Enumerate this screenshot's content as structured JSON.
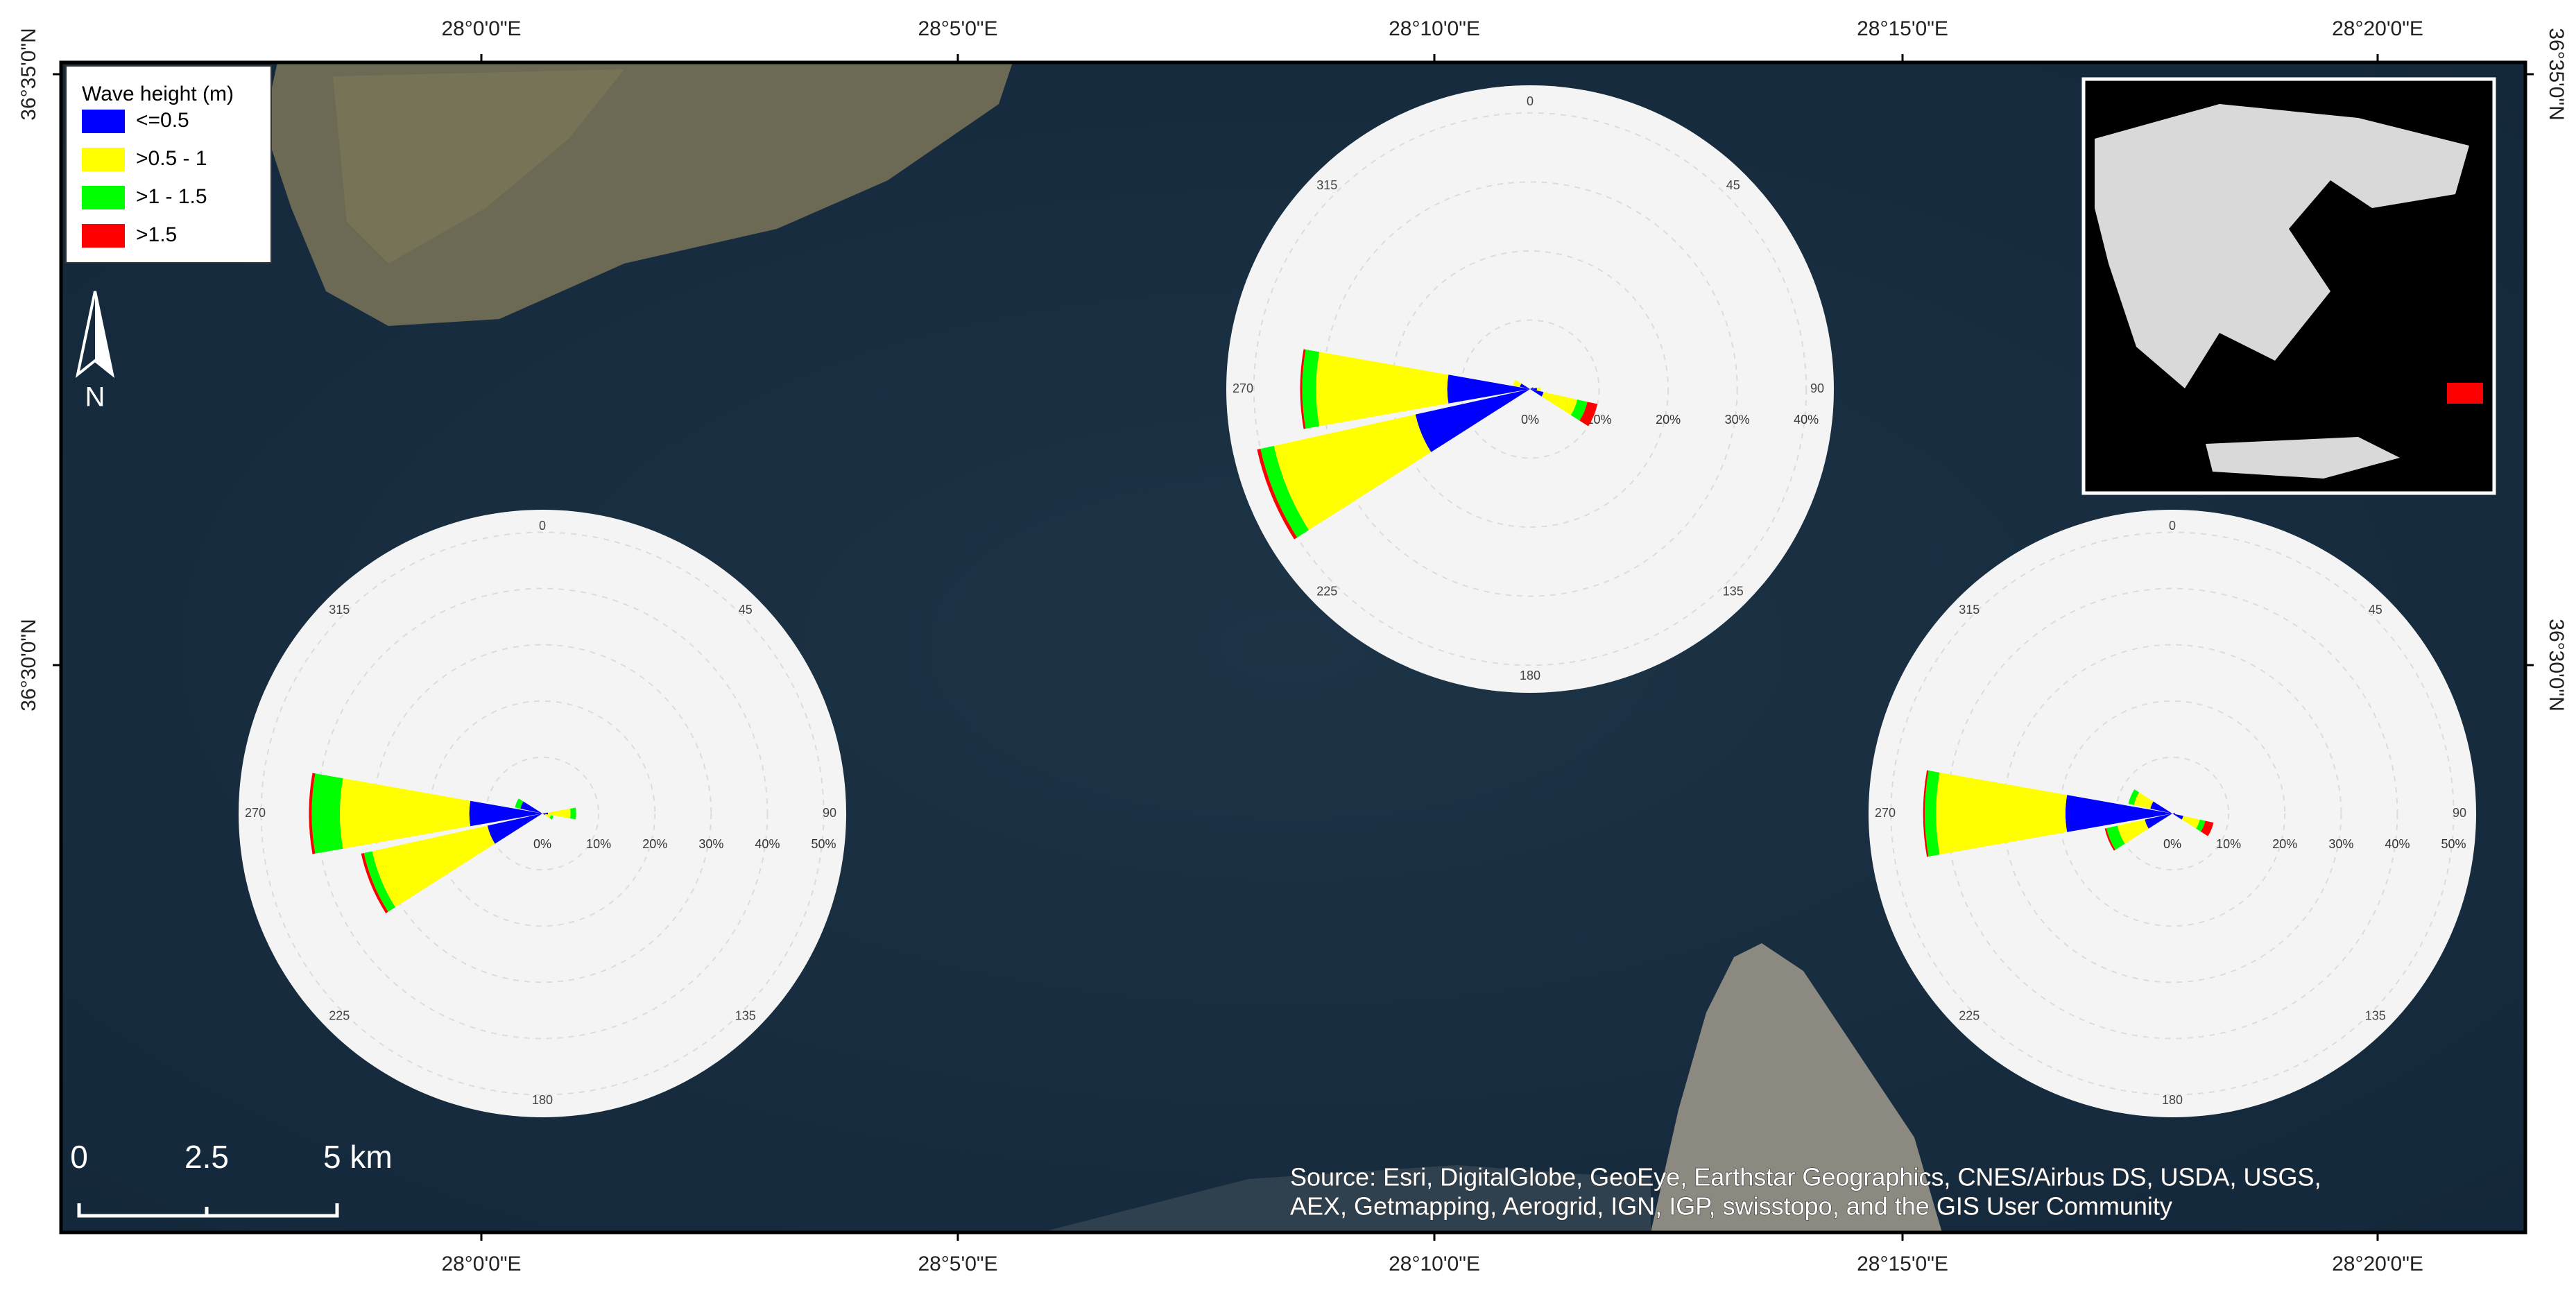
{
  "lon_labels": [
    "28°0'0\"E",
    "28°5'0\"E",
    "28°10'0\"E",
    "28°15'0\"E",
    "28°20'0\"E"
  ],
  "lat_labels": [
    "36°35'0\"N",
    "36°30'0\"N"
  ],
  "legend": {
    "title": "Wave height (m)",
    "items": [
      {
        "name": "<=0.5",
        "color": "#0000ff"
      },
      {
        "name": ">0.5 - 1",
        "color": "#ffff00"
      },
      {
        "name": ">1 - 1.5",
        "color": "#00ff00"
      },
      {
        "name": ">1.5",
        "color": "#ff0000"
      }
    ]
  },
  "north": "N",
  "scale_bar": [
    "0",
    "2.5",
    "5 km"
  ],
  "source": [
    "Source: Esri, DigitalGlobe, GeoEye, Earthstar Geographics, CNES/Airbus DS, USDA, USGS,",
    "AEX, Getmapping, Aerogrid, IGN, IGP, swisstopo, and the GIS User Community"
  ],
  "chart_data": [
    {
      "type": "rose",
      "x": [
        0,
        22.5,
        45,
        67.5,
        90,
        112.5,
        135,
        157.5,
        180,
        202.5,
        225,
        247.5,
        270,
        292.5,
        315,
        337.5
      ],
      "xticks": [
        0,
        45,
        90,
        135,
        180,
        225,
        270,
        315
      ],
      "ylim": [
        0,
        44
      ],
      "yticks": [
        {
          "value": 0,
          "label": "0%"
        },
        {
          "value": 10,
          "label": "10%"
        },
        {
          "value": 20,
          "label": "20%"
        },
        {
          "value": 30,
          "label": "30%"
        },
        {
          "value": 40,
          "label": "40%"
        }
      ],
      "series": [
        {
          "values": [
            0,
            0,
            0,
            0.5,
            1,
            2,
            0,
            0,
            0,
            0,
            0,
            17,
            12,
            1.5,
            0,
            0
          ]
        },
        {
          "values": [
            0,
            0,
            0,
            0,
            0.5,
            5,
            0,
            0,
            0,
            0,
            0,
            21,
            19,
            1,
            0,
            0
          ]
        },
        {
          "values": [
            0,
            0,
            0,
            0,
            0,
            1.5,
            0,
            0,
            0,
            0,
            0,
            2,
            2,
            0,
            0,
            0
          ]
        },
        {
          "values": [
            0,
            0,
            0,
            0,
            0,
            1.5,
            0,
            0,
            0,
            0,
            0,
            0.5,
            0.3,
            0,
            0,
            0
          ]
        }
      ]
    },
    {
      "type": "rose",
      "x": [
        0,
        22.5,
        45,
        67.5,
        90,
        112.5,
        135,
        157.5,
        180,
        202.5,
        225,
        247.5,
        270,
        292.5,
        315,
        337.5
      ],
      "xticks": [
        0,
        45,
        90,
        135,
        180,
        225,
        270,
        315
      ],
      "ylim": [
        0,
        54
      ],
      "yticks": [
        {
          "value": 0,
          "label": "0%"
        },
        {
          "value": 10,
          "label": "10%"
        },
        {
          "value": 20,
          "label": "20%"
        },
        {
          "value": 30,
          "label": "30%"
        },
        {
          "value": 40,
          "label": "40%"
        },
        {
          "value": 50,
          "label": "50%"
        }
      ],
      "series": [
        {
          "values": [
            0,
            0,
            0,
            0,
            1,
            0.5,
            0,
            0,
            0,
            0,
            0,
            10,
            13,
            4,
            0,
            0
          ]
        },
        {
          "values": [
            0,
            0,
            0,
            0.5,
            4,
            1,
            0,
            0,
            0,
            0,
            0,
            21,
            23,
            0,
            0,
            0
          ]
        },
        {
          "values": [
            0,
            0,
            0,
            0,
            1,
            0.5,
            0,
            0,
            0,
            0,
            0,
            1.5,
            5,
            1,
            0,
            0
          ]
        },
        {
          "values": [
            0,
            0,
            0,
            0,
            0,
            0,
            0,
            0,
            0,
            0,
            0,
            0.5,
            0.5,
            0,
            0,
            0
          ]
        }
      ]
    },
    {
      "type": "rose",
      "x": [
        0,
        22.5,
        45,
        67.5,
        90,
        112.5,
        135,
        157.5,
        180,
        202.5,
        225,
        247.5,
        270,
        292.5,
        315,
        337.5
      ],
      "xticks": [
        0,
        45,
        90,
        135,
        180,
        225,
        270,
        315
      ],
      "ylim": [
        0,
        54
      ],
      "yticks": [
        {
          "value": 0,
          "label": "0%"
        },
        {
          "value": 10,
          "label": "10%"
        },
        {
          "value": 20,
          "label": "20%"
        },
        {
          "value": 30,
          "label": "30%"
        },
        {
          "value": 40,
          "label": "40%"
        },
        {
          "value": 50,
          "label": "50%"
        }
      ],
      "series": [
        {
          "values": [
            0,
            0,
            0,
            0,
            0.5,
            2,
            0,
            0,
            0,
            0,
            0,
            5,
            19,
            4,
            0,
            0
          ]
        },
        {
          "values": [
            0,
            0,
            0,
            0,
            0,
            3,
            0,
            0,
            0,
            0,
            0,
            5,
            23,
            3,
            0,
            0
          ]
        },
        {
          "values": [
            0,
            0,
            0,
            0,
            0,
            1,
            0,
            0,
            0,
            0,
            0,
            2,
            2,
            1,
            0,
            0
          ]
        },
        {
          "values": [
            0,
            0,
            0,
            0,
            0,
            1.5,
            0,
            0,
            0,
            0,
            0,
            0.3,
            0.3,
            0,
            0,
            0
          ]
        }
      ]
    }
  ]
}
